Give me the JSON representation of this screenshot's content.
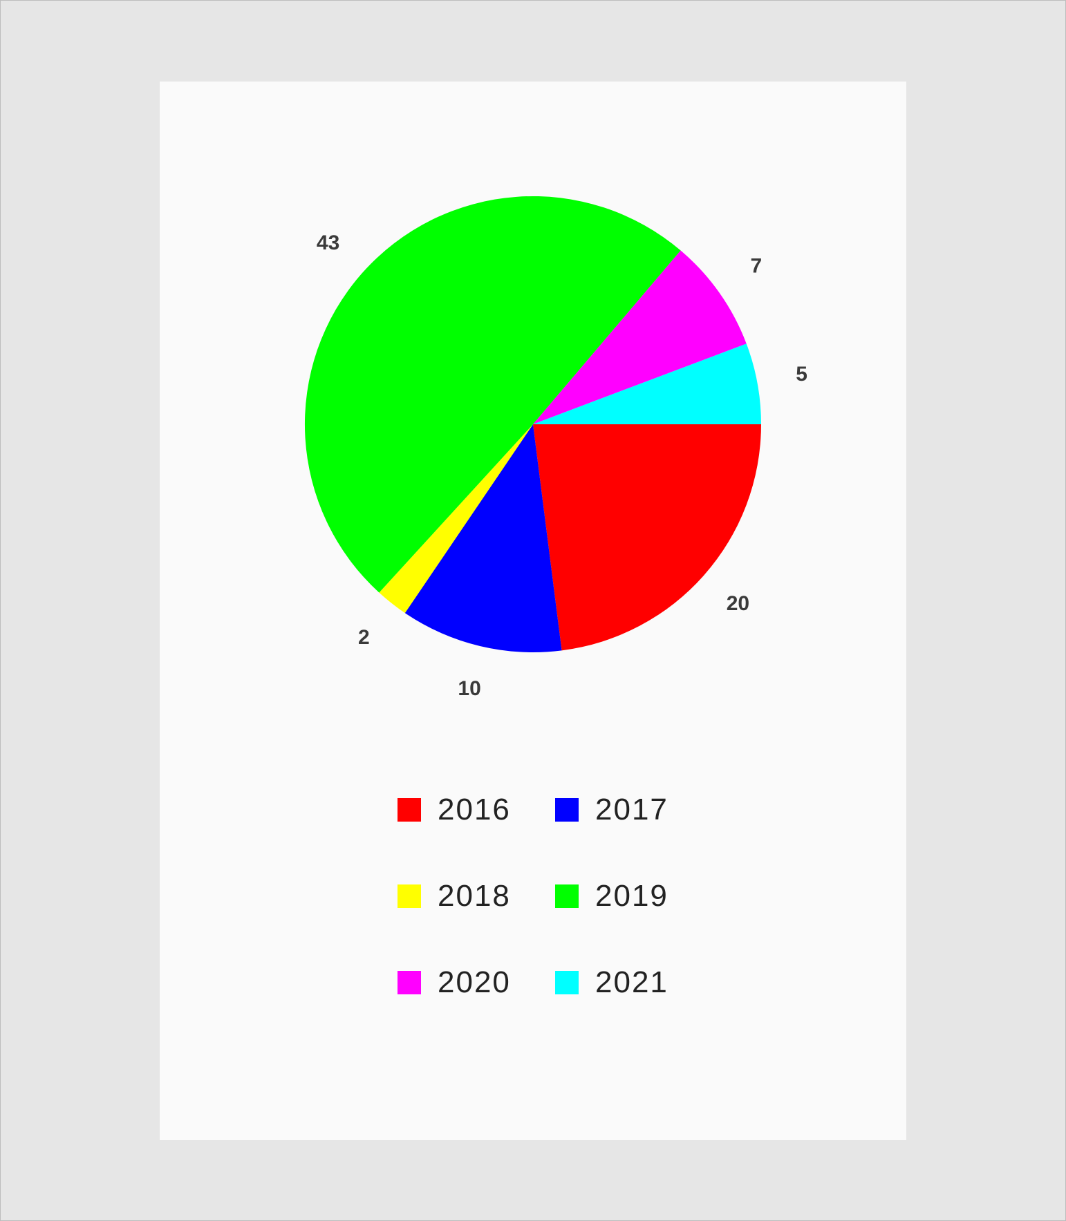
{
  "chart_data": {
    "type": "pie",
    "title": "",
    "slices": [
      {
        "label": "2016",
        "value": 20,
        "color": "#ff0000"
      },
      {
        "label": "2017",
        "value": 10,
        "color": "#0000ff"
      },
      {
        "label": "2018",
        "value": 2,
        "color": "#ffff00"
      },
      {
        "label": "2019",
        "value": 43,
        "color": "#00ff00"
      },
      {
        "label": "2020",
        "value": 7,
        "color": "#ff00ff"
      },
      {
        "label": "2021",
        "value": 5,
        "color": "#00ffff"
      }
    ],
    "start_angle_deg": 0,
    "direction": "clockwise",
    "show_values": true,
    "legend_position": "bottom"
  },
  "legend": {
    "items": [
      {
        "label": "2016",
        "color": "#ff0000"
      },
      {
        "label": "2017",
        "color": "#0000ff"
      },
      {
        "label": "2018",
        "color": "#ffff00"
      },
      {
        "label": "2019",
        "color": "#00ff00"
      },
      {
        "label": "2020",
        "color": "#ff00ff"
      },
      {
        "label": "2021",
        "color": "#00ffff"
      }
    ]
  }
}
